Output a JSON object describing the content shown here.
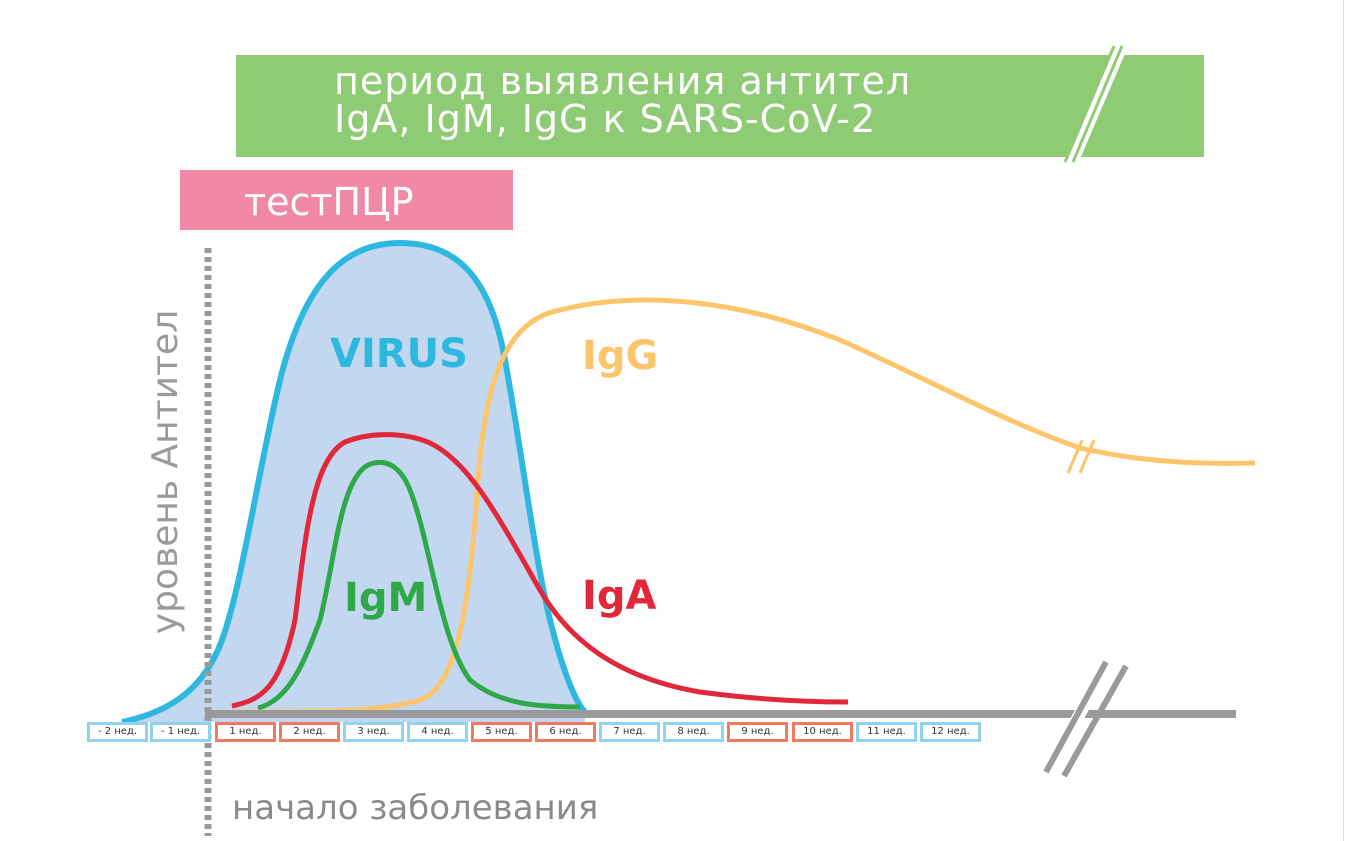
{
  "banner": {
    "line1": "период выявления  антител",
    "line2": "IgA, IgM, IgG к SARS-CoV-2",
    "color": "#8fca74"
  },
  "pcr": {
    "label": "тестПЦР",
    "color": "#f088a8"
  },
  "axes": {
    "ylabel": "уровень Антител",
    "onset_label": "начало заболевания"
  },
  "curves": {
    "virus": {
      "label": "VIRUS",
      "color": "#2eb8e0",
      "fill": "#c3d8f0"
    },
    "igg": {
      "label": "IgG",
      "color": "#fcc56b"
    },
    "iga": {
      "label": "IgA",
      "color": "#e0283a"
    },
    "igm": {
      "label": "IgM",
      "color": "#2fa84a"
    }
  },
  "timeline": {
    "weeks": [
      {
        "label": "- 2 нед.",
        "color": "blue"
      },
      {
        "label": "- 1 нед.",
        "color": "blue"
      },
      {
        "label": "1 нед.",
        "color": "red"
      },
      {
        "label": "2 нед.",
        "color": "red"
      },
      {
        "label": "3 нед.",
        "color": "blue"
      },
      {
        "label": "4 нед.",
        "color": "blue"
      },
      {
        "label": "5 нед.",
        "color": "red"
      },
      {
        "label": "6 нед.",
        "color": "red"
      },
      {
        "label": "7 нед.",
        "color": "blue"
      },
      {
        "label": "8 нед.",
        "color": "blue"
      },
      {
        "label": "9 нед.",
        "color": "red"
      },
      {
        "label": "10 нед.",
        "color": "red"
      },
      {
        "label": "11 нед.",
        "color": "blue"
      },
      {
        "label": "12 нед.",
        "color": "blue"
      }
    ]
  }
}
